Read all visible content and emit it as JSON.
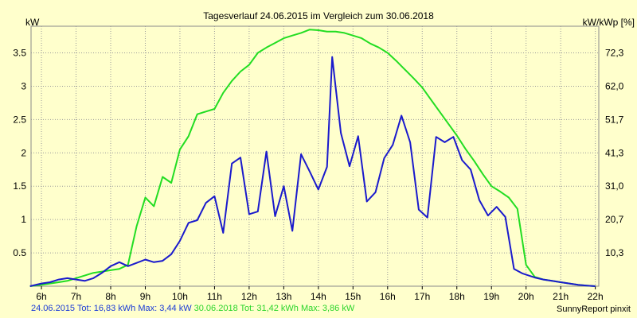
{
  "chart_data": {
    "type": "line",
    "title": "Tagesverlauf 24.06.2015 im Vergleich zum 30.06.2018",
    "ylabel_left": "kW",
    "ylabel_right": "kW/kWp [%]",
    "ylim": [
      0,
      3.9
    ],
    "xlim": [
      5.7,
      22.1
    ],
    "x_ticks": [
      6,
      7,
      8,
      9,
      10,
      11,
      12,
      13,
      14,
      15,
      16,
      17,
      18,
      19,
      20,
      21,
      22
    ],
    "x_tick_labels": [
      "6h",
      "7h",
      "8h",
      "9h",
      "10h",
      "11h",
      "12h",
      "13h",
      "14h",
      "15h",
      "16h",
      "17h",
      "18h",
      "19h",
      "20h",
      "21h",
      "22h"
    ],
    "y_ticks": [
      0.5,
      1,
      1.5,
      2,
      2.5,
      3,
      3.5
    ],
    "y_tick_labels": [
      "0.5",
      "1",
      "1.5",
      "2",
      "2.5",
      "3",
      "3.5"
    ],
    "y2_ticks": [
      0.5,
      1,
      1.5,
      2,
      2.5,
      3,
      3.5
    ],
    "y2_tick_labels": [
      "10,3",
      "20,7",
      "31,0",
      "41,3",
      "51,7",
      "62,0",
      "72,3"
    ],
    "grid": true,
    "series": [
      {
        "name": "24.06.2015",
        "color": "#1a1acc",
        "x": [
          5.67,
          6.0,
          6.25,
          6.5,
          6.75,
          7.0,
          7.25,
          7.5,
          7.75,
          8.0,
          8.25,
          8.5,
          8.75,
          9.0,
          9.25,
          9.5,
          9.75,
          10.0,
          10.25,
          10.5,
          10.75,
          11.0,
          11.25,
          11.5,
          11.75,
          12.0,
          12.25,
          12.5,
          12.75,
          13.0,
          13.25,
          13.5,
          13.75,
          14.0,
          14.25,
          14.4,
          14.65,
          14.9,
          15.15,
          15.4,
          15.65,
          15.9,
          16.15,
          16.4,
          16.65,
          16.9,
          17.15,
          17.4,
          17.65,
          17.9,
          18.15,
          18.4,
          18.65,
          18.9,
          19.15,
          19.4,
          19.65,
          19.9,
          20.25,
          20.5,
          20.75,
          21.0,
          21.25,
          21.5,
          21.75,
          22.0
        ],
        "values": [
          0.0,
          0.04,
          0.06,
          0.1,
          0.12,
          0.1,
          0.08,
          0.12,
          0.2,
          0.3,
          0.36,
          0.3,
          0.35,
          0.4,
          0.36,
          0.38,
          0.48,
          0.68,
          0.95,
          0.99,
          1.25,
          1.35,
          0.8,
          1.84,
          1.93,
          1.08,
          1.12,
          2.02,
          1.05,
          1.5,
          0.83,
          1.98,
          1.72,
          1.45,
          1.79,
          3.44,
          2.3,
          1.8,
          2.25,
          1.27,
          1.41,
          1.92,
          2.12,
          2.56,
          2.16,
          1.15,
          1.03,
          2.24,
          2.16,
          2.24,
          1.89,
          1.75,
          1.29,
          1.06,
          1.19,
          1.04,
          0.26,
          0.19,
          0.13,
          0.1,
          0.08,
          0.06,
          0.04,
          0.02,
          0.01,
          0.0
        ]
      },
      {
        "name": "30.06.2018",
        "color": "#22dd22",
        "x": [
          5.67,
          6.0,
          6.25,
          6.5,
          6.75,
          7.0,
          7.25,
          7.5,
          7.75,
          8.0,
          8.25,
          8.5,
          8.75,
          9.0,
          9.25,
          9.5,
          9.75,
          10.0,
          10.25,
          10.5,
          10.75,
          11.0,
          11.25,
          11.5,
          11.75,
          12.0,
          12.25,
          12.5,
          12.75,
          13.0,
          13.25,
          13.5,
          13.75,
          14.0,
          14.25,
          14.5,
          14.75,
          15.0,
          15.25,
          15.5,
          15.75,
          16.0,
          16.25,
          16.5,
          16.75,
          17.0,
          17.25,
          17.5,
          17.75,
          18.0,
          18.25,
          18.5,
          18.75,
          19.0,
          19.25,
          19.5,
          19.75,
          20.0,
          20.25,
          20.5,
          20.75,
          21.0,
          21.25,
          21.5,
          21.75,
          22.0
        ],
        "values": [
          0.0,
          0.02,
          0.04,
          0.06,
          0.08,
          0.12,
          0.16,
          0.2,
          0.22,
          0.24,
          0.26,
          0.32,
          0.9,
          1.33,
          1.2,
          1.64,
          1.55,
          2.05,
          2.25,
          2.58,
          2.62,
          2.66,
          2.9,
          3.08,
          3.22,
          3.32,
          3.5,
          3.58,
          3.65,
          3.72,
          3.76,
          3.8,
          3.85,
          3.84,
          3.82,
          3.82,
          3.8,
          3.76,
          3.72,
          3.64,
          3.58,
          3.5,
          3.38,
          3.25,
          3.12,
          2.98,
          2.8,
          2.62,
          2.44,
          2.26,
          2.06,
          1.88,
          1.68,
          1.5,
          1.42,
          1.33,
          1.16,
          0.32,
          0.14,
          0.1,
          0.08,
          0.06,
          0.04,
          0.02,
          0.01,
          0.0
        ]
      }
    ]
  },
  "legend": {
    "line_2015": "24.06.2015 Tot: 16,83 kWh Max: 3,44 kW",
    "line_2018": "30.06.2018 Tot: 31,42 kWh Max: 3,86 kW",
    "color_2015": "#1a3ad6",
    "color_2018": "#2ad52a"
  },
  "credit": "SunnyReport pinxit"
}
